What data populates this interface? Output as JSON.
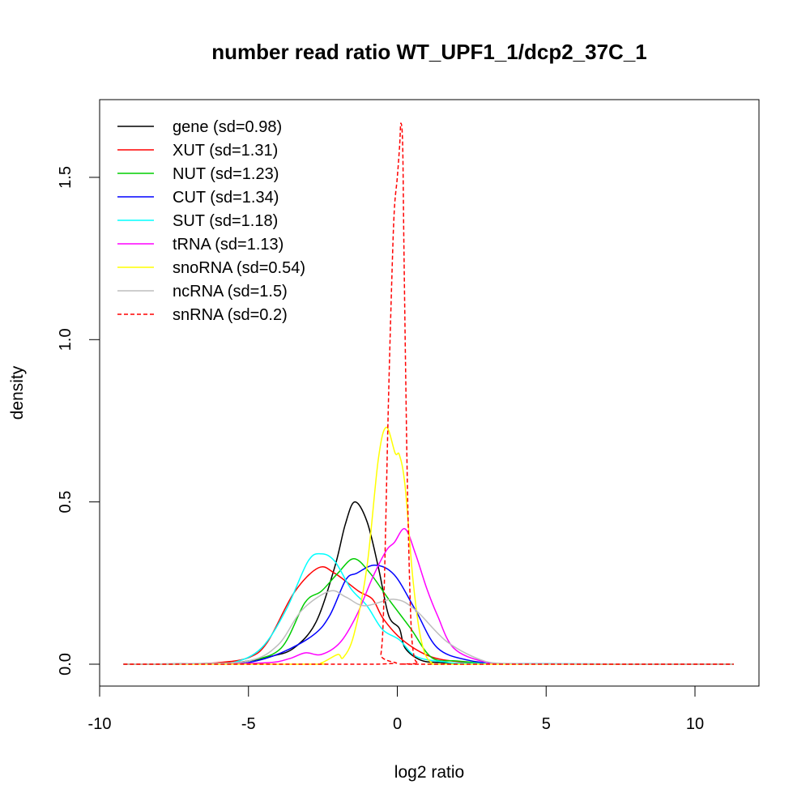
{
  "chart_data": {
    "type": "line",
    "title": "number read ratio WT_UPF1_1/dcp2_37C_1",
    "xlabel": "log2 ratio",
    "ylabel": "density",
    "xlim": [
      -10,
      12
    ],
    "ylim": [
      -0.07,
      1.74
    ],
    "xticks": [
      -10,
      -5,
      0,
      5,
      10
    ],
    "xtick_labels": [
      "-10",
      "-5",
      "0",
      "5",
      "10"
    ],
    "yticks": [
      0,
      0.5,
      1,
      1.5
    ],
    "ytick_labels": [
      "0.0",
      "0.5",
      "1.0",
      "1.5"
    ],
    "grid": false,
    "legend_position": "top-left",
    "series": [
      {
        "name": "gene (sd=0.98)",
        "color": "#000000",
        "dash": false,
        "x": [
          -9.2,
          -6,
          -5,
          -4.2,
          -3.47,
          -2.73,
          -2.1,
          -1.75,
          -1.43,
          -1.02,
          -0.64,
          -0.29,
          0.07,
          0.26,
          0.8,
          1.5,
          3,
          11.3
        ],
        "y": [
          0,
          0.003,
          0.01,
          0.025,
          0.05,
          0.13,
          0.3,
          0.43,
          0.5,
          0.44,
          0.3,
          0.15,
          0.11,
          0.05,
          0.012,
          0.005,
          0.001,
          0
        ]
      },
      {
        "name": "XUT (sd=1.31)",
        "color": "#FF0000",
        "dash": false,
        "x": [
          -9.2,
          -7,
          -6,
          -5,
          -4.37,
          -3.47,
          -2.65,
          -2.1,
          -1.3,
          -0.83,
          -0.47,
          0.17,
          1.07,
          2,
          3,
          4,
          11.3
        ],
        "y": [
          0,
          0.001,
          0.005,
          0.02,
          0.067,
          0.22,
          0.297,
          0.28,
          0.225,
          0.2,
          0.14,
          0.075,
          0.025,
          0.008,
          0.003,
          0.001,
          0
        ]
      },
      {
        "name": "NUT (sd=1.23)",
        "color": "#00CD00",
        "dash": false,
        "x": [
          -9.2,
          -6,
          -5,
          -3.9,
          -3.1,
          -2.55,
          -2.0,
          -1.46,
          -0.91,
          -0.29,
          0.45,
          1.16,
          2,
          3,
          4,
          11.3
        ],
        "y": [
          0,
          0.002,
          0.01,
          0.05,
          0.19,
          0.225,
          0.28,
          0.325,
          0.28,
          0.2,
          0.11,
          0.02,
          0.01,
          0.003,
          0.001,
          0
        ]
      },
      {
        "name": "CUT (sd=1.34)",
        "color": "#0000FF",
        "dash": false,
        "x": [
          -9.2,
          -6,
          -5,
          -3.9,
          -2.82,
          -2.27,
          -1.73,
          -1.37,
          -0.75,
          -0.1,
          0.61,
          1.35,
          2.4,
          3.5,
          4.5,
          11.3
        ],
        "y": [
          0,
          0.001,
          0.005,
          0.035,
          0.09,
          0.15,
          0.26,
          0.28,
          0.305,
          0.275,
          0.167,
          0.05,
          0.012,
          0.002,
          0.001,
          0
        ]
      },
      {
        "name": "SUT (sd=1.18)",
        "color": "#00FFFF",
        "dash": false,
        "x": [
          -9.2,
          -6.5,
          -5.5,
          -4.56,
          -3.74,
          -3.0,
          -2.55,
          -2.1,
          -1.56,
          -1.02,
          -0.5,
          0.07,
          0.61,
          1.5,
          3,
          11.3
        ],
        "y": [
          0,
          0.001,
          0.005,
          0.05,
          0.167,
          0.317,
          0.34,
          0.317,
          0.233,
          0.18,
          0.107,
          0.075,
          0.025,
          0.008,
          0.002,
          0
        ]
      },
      {
        "name": "tRNA (sd=1.13)",
        "color": "#FF00FF",
        "dash": false,
        "x": [
          -9.2,
          -6,
          -4.3,
          -3.63,
          -3.09,
          -2.55,
          -1.92,
          -1.37,
          -0.83,
          -0.37,
          -0.1,
          0.26,
          0.61,
          0.99,
          1.35,
          1.89,
          2.9,
          4,
          11.3
        ],
        "y": [
          0,
          0.001,
          0.005,
          0.017,
          0.035,
          0.03,
          0.067,
          0.15,
          0.267,
          0.35,
          0.375,
          0.417,
          0.34,
          0.233,
          0.15,
          0.05,
          0.008,
          0.001,
          0
        ]
      },
      {
        "name": "snoRNA (sd=0.54)",
        "color": "#FFFF00",
        "dash": false,
        "x": [
          -9.2,
          -3,
          -2.55,
          -2.0,
          -1.82,
          -1.46,
          -1.02,
          -0.64,
          -0.37,
          -0.07,
          0.07,
          0.26,
          0.53,
          0.8,
          1.16,
          2,
          11.3
        ],
        "y": [
          0,
          0,
          0.004,
          0.03,
          0.02,
          0.09,
          0.3,
          0.63,
          0.73,
          0.65,
          0.645,
          0.55,
          0.257,
          0.075,
          0.004,
          0,
          0
        ]
      },
      {
        "name": "ncRNA (sd=1.5)",
        "color": "#BEBEBE",
        "dash": false,
        "x": [
          -9.2,
          -7,
          -5,
          -4,
          -3.2,
          -2.27,
          -1.73,
          -1.1,
          -0.1,
          0.61,
          1.7,
          2.98,
          4,
          5,
          11.3
        ],
        "y": [
          0,
          0.002,
          0.01,
          0.06,
          0.167,
          0.225,
          0.207,
          0.18,
          0.2,
          0.167,
          0.067,
          0.008,
          0.002,
          0.001,
          0
        ]
      },
      {
        "name": "snRNA (sd=0.2)",
        "color": "#FF0000",
        "dash": true,
        "x": [
          -9.2,
          -0.7,
          -0.55,
          -0.45,
          -0.3,
          -0.18,
          -0.1,
          0.0,
          0.08,
          0.12,
          0.18,
          0.22,
          0.28,
          0.35,
          0.45,
          0.55,
          0.7,
          0.9,
          11.3
        ],
        "y": [
          0,
          0,
          0.03,
          0.2,
          0.8,
          1.2,
          1.4,
          1.5,
          1.6,
          1.667,
          1.6,
          1.3,
          0.9,
          0.5,
          0.15,
          0.03,
          0.003,
          0,
          0
        ]
      }
    ]
  }
}
